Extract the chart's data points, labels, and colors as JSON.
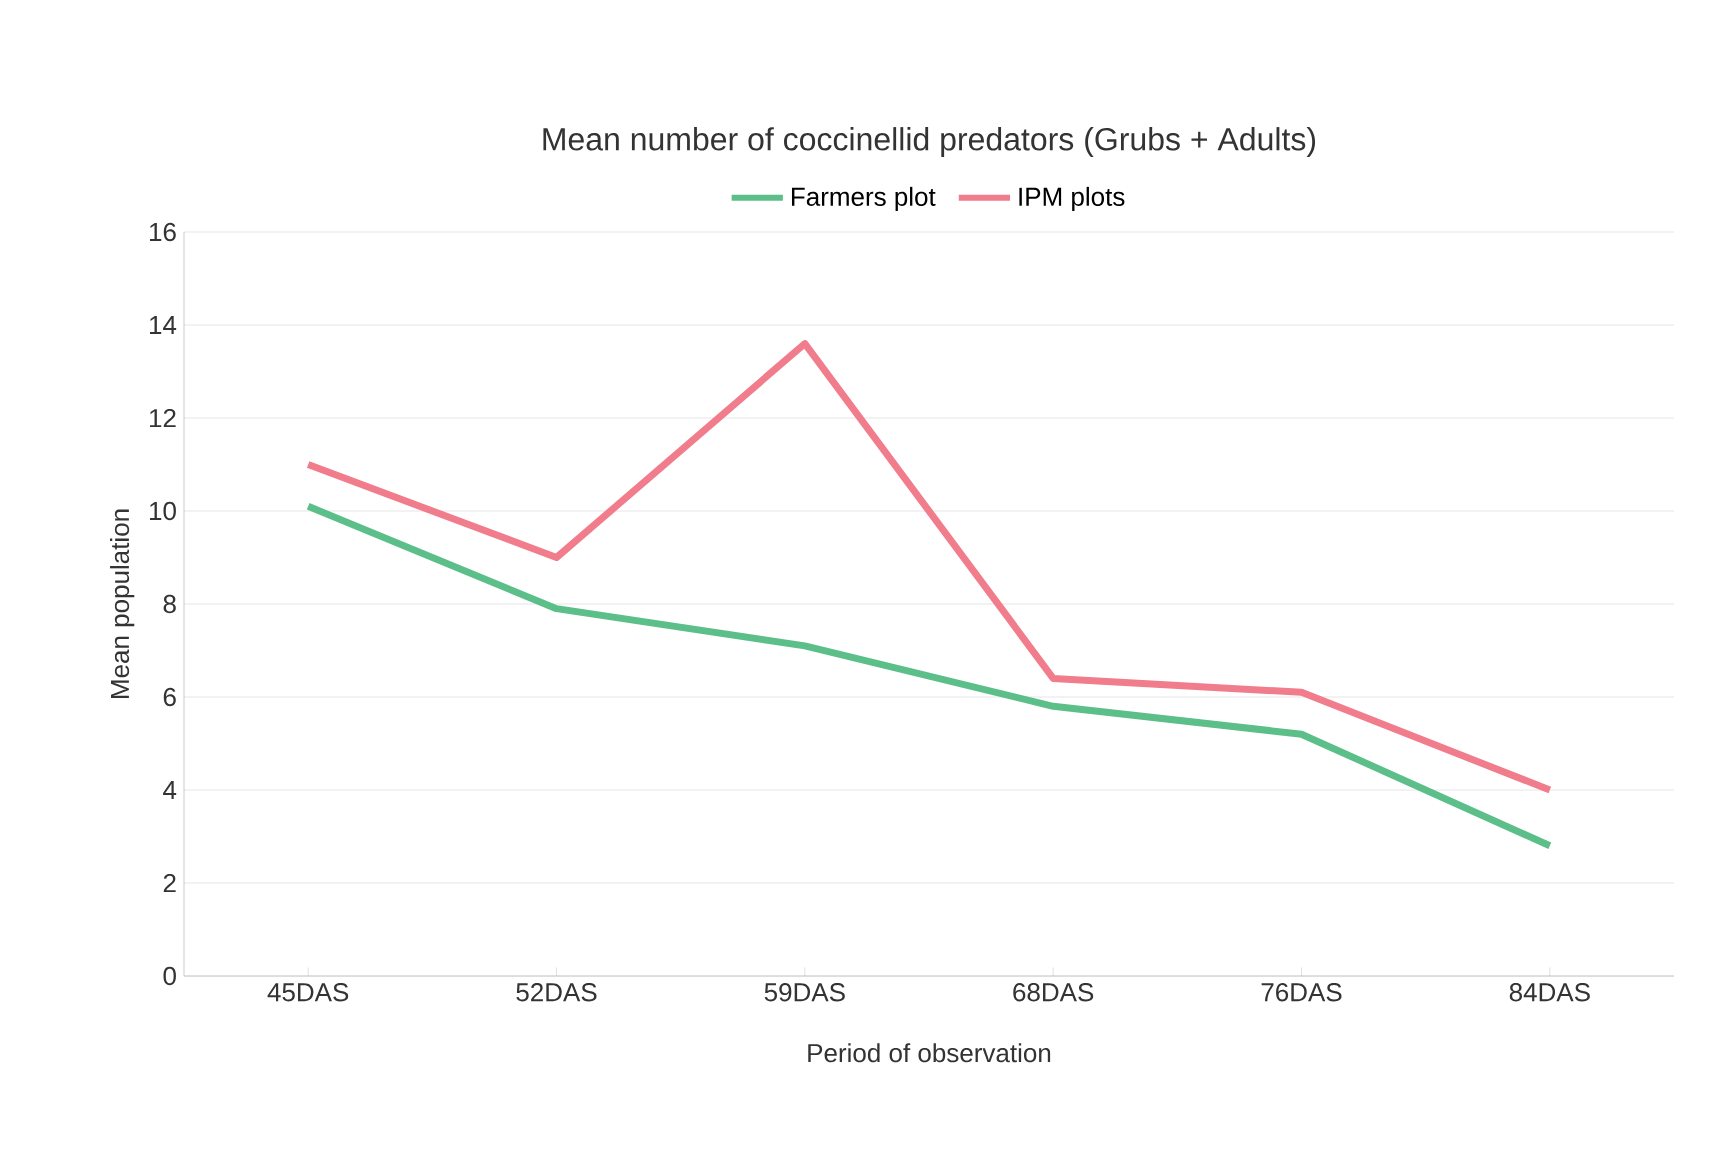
{
  "chart_data": {
    "type": "line",
    "title": "Mean number of coccinellid predators (Grubs + Adults)",
    "xlabel": "Period of observation",
    "ylabel": "Mean population",
    "categories": [
      "45DAS",
      "52DAS",
      "59DAS",
      "68DAS",
      "76DAS",
      "84DAS"
    ],
    "series": [
      {
        "name": "Farmers plot",
        "color": "#5cbf8a",
        "values": [
          10.1,
          7.9,
          7.1,
          5.8,
          5.2,
          2.8
        ]
      },
      {
        "name": "IPM plots",
        "color": "#f07c8c",
        "values": [
          11.0,
          9.0,
          13.6,
          6.4,
          6.1,
          4.0
        ]
      }
    ],
    "ylim": [
      0,
      16
    ],
    "yticks": [
      0,
      2,
      4,
      6,
      8,
      10,
      12,
      14,
      16
    ],
    "grid": "y",
    "legend": "top",
    "marker": "none",
    "line_style": "solid"
  }
}
